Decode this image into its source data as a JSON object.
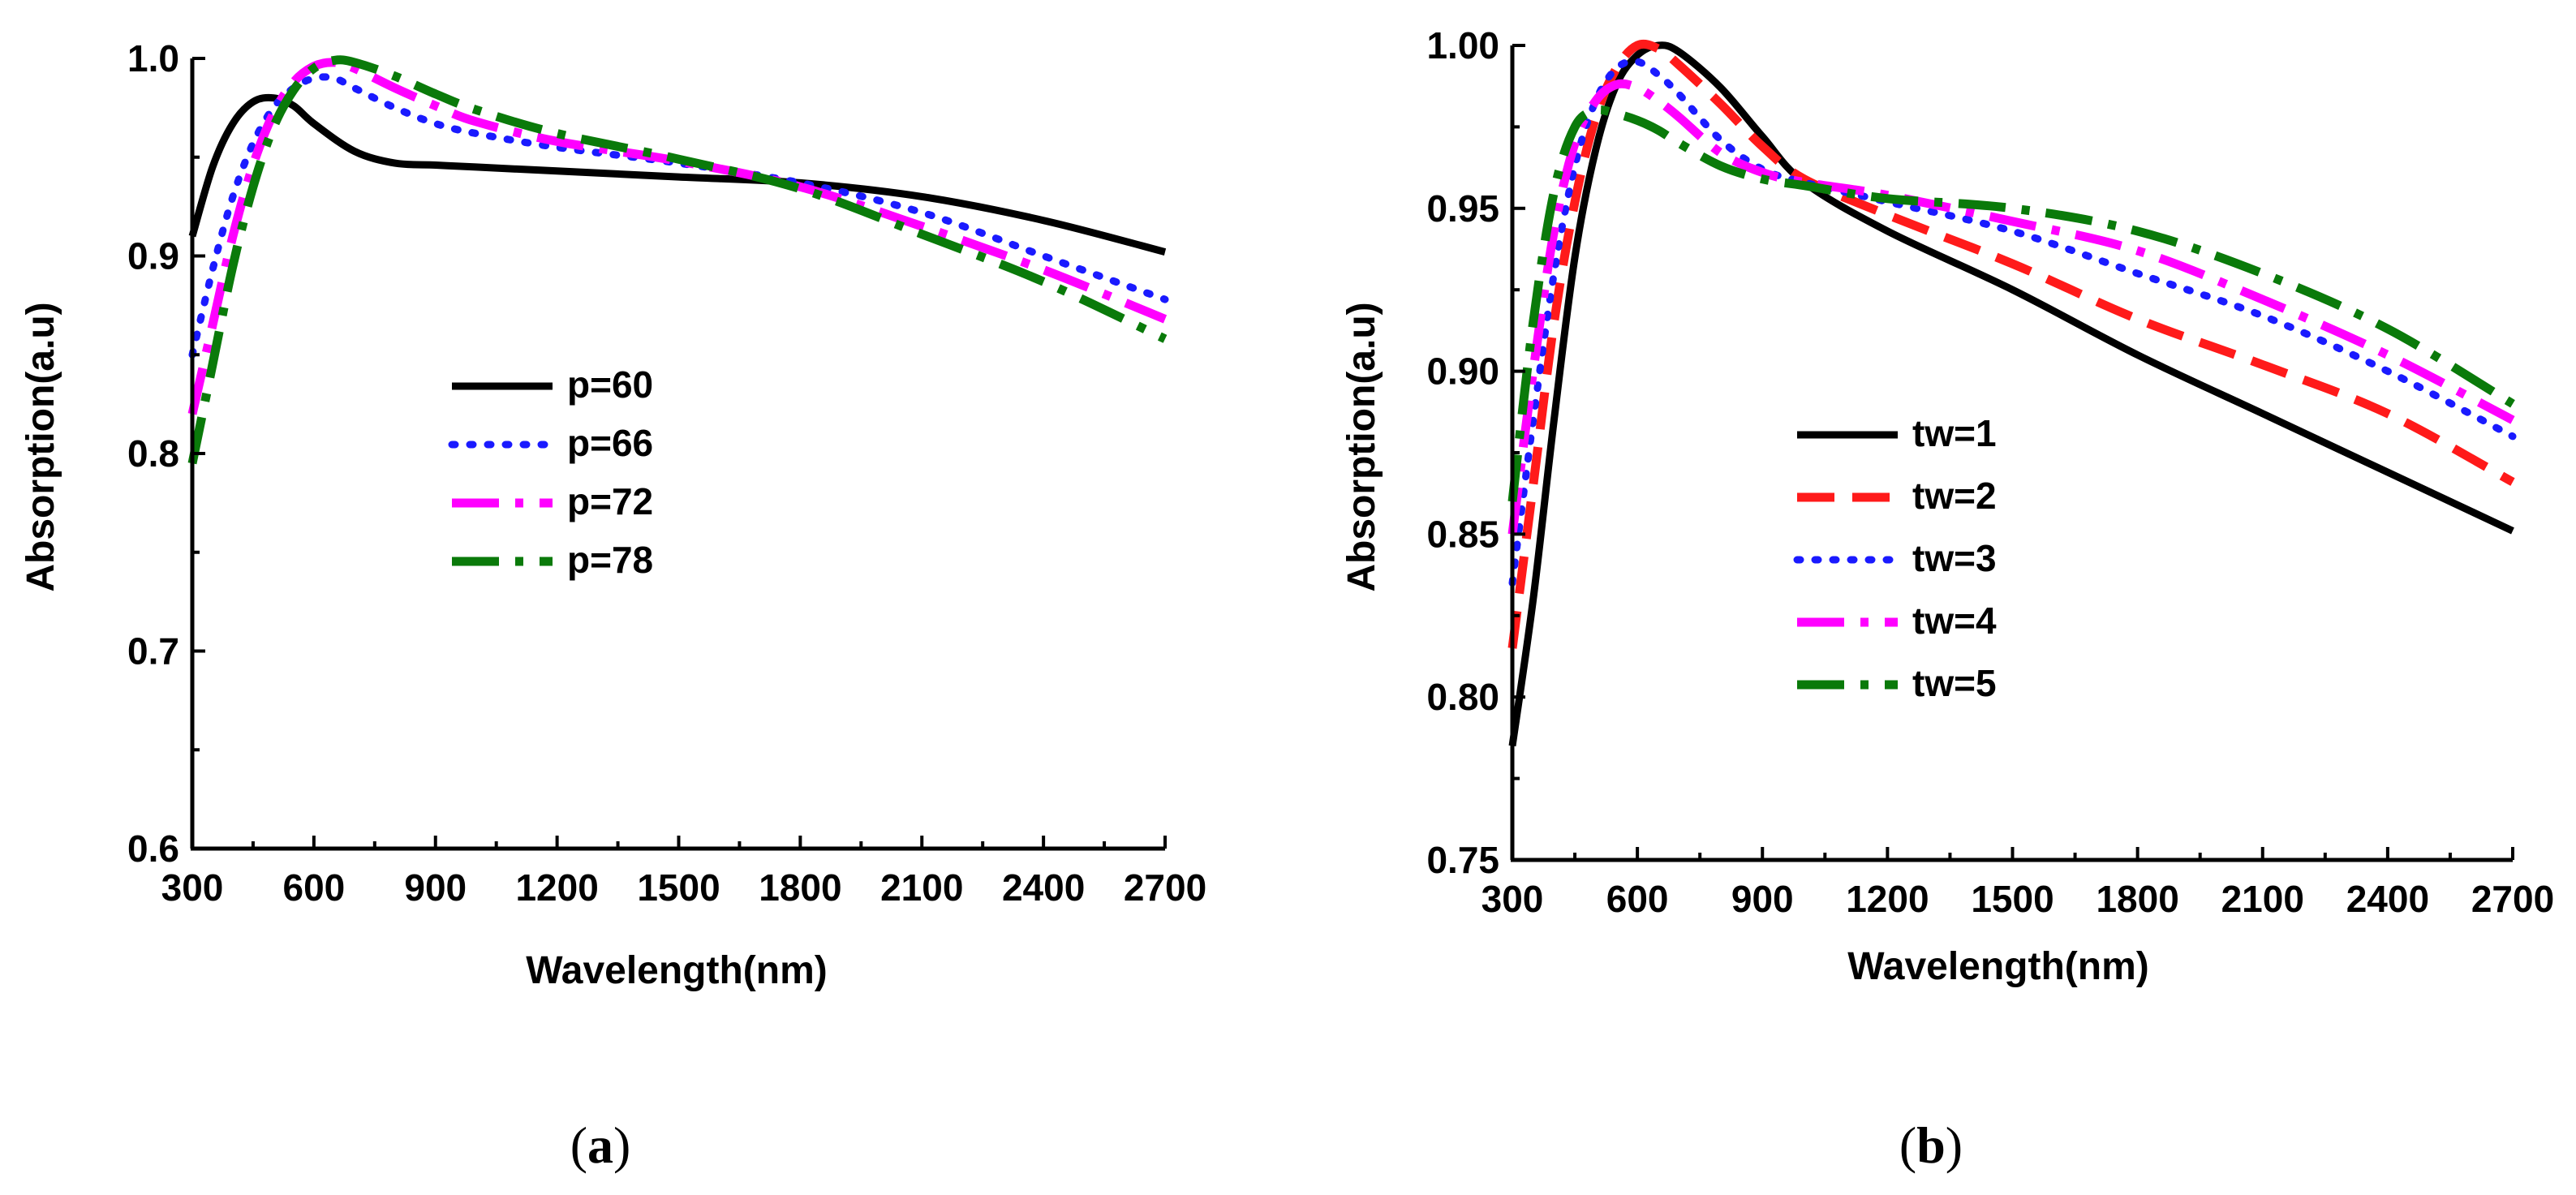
{
  "chart_data": [
    {
      "type": "line",
      "caption_open": "(",
      "caption_letter": "a",
      "caption_close": ")",
      "title": "",
      "xlabel": "Wavelength(nm)",
      "ylabel": "Absorption(a.u)",
      "xlim": [
        300,
        2700
      ],
      "ylim": [
        0.6,
        1.0
      ],
      "xticks": [
        300,
        600,
        900,
        1200,
        1500,
        1800,
        2100,
        2400,
        2700
      ],
      "yticks": [
        0.6,
        0.7,
        0.8,
        0.9,
        1.0
      ],
      "ytick_labels": [
        "0.6",
        "0.7",
        "0.8",
        "0.9",
        "1.0"
      ],
      "legend_position": "center",
      "series": [
        {
          "name": "p=60",
          "color": "#000000",
          "style": "solid",
          "x": [
            300,
            350,
            400,
            450,
            500,
            550,
            600,
            700,
            800,
            900,
            1000,
            1200,
            1500,
            1800,
            2100,
            2400,
            2700
          ],
          "y": [
            0.91,
            0.945,
            0.967,
            0.978,
            0.98,
            0.976,
            0.967,
            0.953,
            0.947,
            0.946,
            0.945,
            0.943,
            0.94,
            0.937,
            0.93,
            0.918,
            0.902
          ]
        },
        {
          "name": "p=66",
          "color": "#1a1aff",
          "style": "dotted",
          "x": [
            300,
            350,
            400,
            450,
            500,
            550,
            600,
            650,
            700,
            800,
            900,
            1000,
            1200,
            1500,
            1800,
            2100,
            2400,
            2700
          ],
          "y": [
            0.85,
            0.893,
            0.93,
            0.957,
            0.975,
            0.985,
            0.99,
            0.99,
            0.985,
            0.975,
            0.967,
            0.962,
            0.955,
            0.947,
            0.937,
            0.922,
            0.9,
            0.878
          ]
        },
        {
          "name": "p=72",
          "color": "#ff00ff",
          "style": "dashdot",
          "x": [
            300,
            350,
            400,
            450,
            500,
            550,
            600,
            650,
            700,
            800,
            900,
            1000,
            1200,
            1500,
            1800,
            2100,
            2400,
            2700
          ],
          "y": [
            0.82,
            0.865,
            0.91,
            0.946,
            0.972,
            0.988,
            0.996,
            0.998,
            0.995,
            0.985,
            0.976,
            0.968,
            0.958,
            0.948,
            0.935,
            0.915,
            0.893,
            0.868
          ]
        },
        {
          "name": "p=78",
          "color": "#0a7a0a",
          "style": "dashdot",
          "x": [
            300,
            350,
            400,
            450,
            500,
            550,
            600,
            650,
            700,
            800,
            900,
            1000,
            1200,
            1500,
            1800,
            2100,
            2400,
            2700
          ],
          "y": [
            0.795,
            0.845,
            0.895,
            0.935,
            0.965,
            0.984,
            0.995,
            0.999,
            0.998,
            0.991,
            0.982,
            0.974,
            0.962,
            0.949,
            0.934,
            0.911,
            0.887,
            0.858
          ]
        }
      ]
    },
    {
      "type": "line",
      "caption_open": "(",
      "caption_letter": "b",
      "caption_close": ")",
      "title": "",
      "xlabel": "Wavelength(nm)",
      "ylabel": "Absorption(a.u)",
      "xlim": [
        300,
        2700
      ],
      "ylim": [
        0.75,
        1.0
      ],
      "xticks": [
        300,
        600,
        900,
        1200,
        1500,
        1800,
        2100,
        2400,
        2700
      ],
      "yticks": [
        0.75,
        0.8,
        0.85,
        0.9,
        0.95,
        1.0
      ],
      "ytick_labels": [
        "0.75",
        "0.80",
        "0.85",
        "0.90",
        "0.95",
        "1.00"
      ],
      "legend_position": "center",
      "series": [
        {
          "name": "tw=1",
          "color": "#000000",
          "style": "solid",
          "x": [
            300,
            350,
            400,
            450,
            500,
            550,
            600,
            650,
            700,
            800,
            900,
            1000,
            1200,
            1500,
            1800,
            2100,
            2400,
            2700
          ],
          "y": [
            0.785,
            0.83,
            0.885,
            0.935,
            0.968,
            0.988,
            0.997,
            1.0,
            0.998,
            0.987,
            0.972,
            0.958,
            0.943,
            0.925,
            0.905,
            0.887,
            0.869,
            0.851
          ]
        },
        {
          "name": "tw=2",
          "color": "#ff1a1a",
          "style": "dashed",
          "x": [
            300,
            350,
            400,
            450,
            500,
            550,
            600,
            650,
            700,
            800,
            900,
            1000,
            1200,
            1500,
            1800,
            2100,
            2400,
            2700
          ],
          "y": [
            0.815,
            0.865,
            0.915,
            0.952,
            0.978,
            0.993,
            1.0,
            0.999,
            0.994,
            0.982,
            0.969,
            0.959,
            0.948,
            0.933,
            0.916,
            0.902,
            0.887,
            0.866
          ]
        },
        {
          "name": "tw=3",
          "color": "#1a1aff",
          "style": "dotted",
          "x": [
            300,
            350,
            400,
            450,
            500,
            550,
            600,
            650,
            700,
            800,
            900,
            1000,
            1200,
            1500,
            1800,
            2100,
            2400,
            2700
          ],
          "y": [
            0.835,
            0.885,
            0.93,
            0.963,
            0.983,
            0.993,
            0.995,
            0.991,
            0.985,
            0.971,
            0.962,
            0.958,
            0.952,
            0.943,
            0.93,
            0.917,
            0.9,
            0.88
          ]
        },
        {
          "name": "tw=4",
          "color": "#ff00ff",
          "style": "dashdot",
          "x": [
            300,
            350,
            400,
            450,
            500,
            550,
            600,
            650,
            700,
            800,
            900,
            1000,
            1200,
            1500,
            1800,
            2100,
            2400,
            2700
          ],
          "y": [
            0.85,
            0.9,
            0.943,
            0.97,
            0.983,
            0.988,
            0.987,
            0.983,
            0.978,
            0.967,
            0.961,
            0.958,
            0.954,
            0.946,
            0.937,
            0.922,
            0.905,
            0.885
          ]
        },
        {
          "name": "tw=5",
          "color": "#0a7a0a",
          "style": "dashdot",
          "x": [
            300,
            350,
            400,
            450,
            500,
            550,
            600,
            650,
            700,
            800,
            900,
            1000,
            1200,
            1500,
            1800,
            2100,
            2400,
            2700
          ],
          "y": [
            0.86,
            0.915,
            0.955,
            0.975,
            0.98,
            0.979,
            0.977,
            0.974,
            0.97,
            0.963,
            0.959,
            0.957,
            0.953,
            0.95,
            0.943,
            0.93,
            0.913,
            0.89
          ]
        }
      ]
    }
  ]
}
